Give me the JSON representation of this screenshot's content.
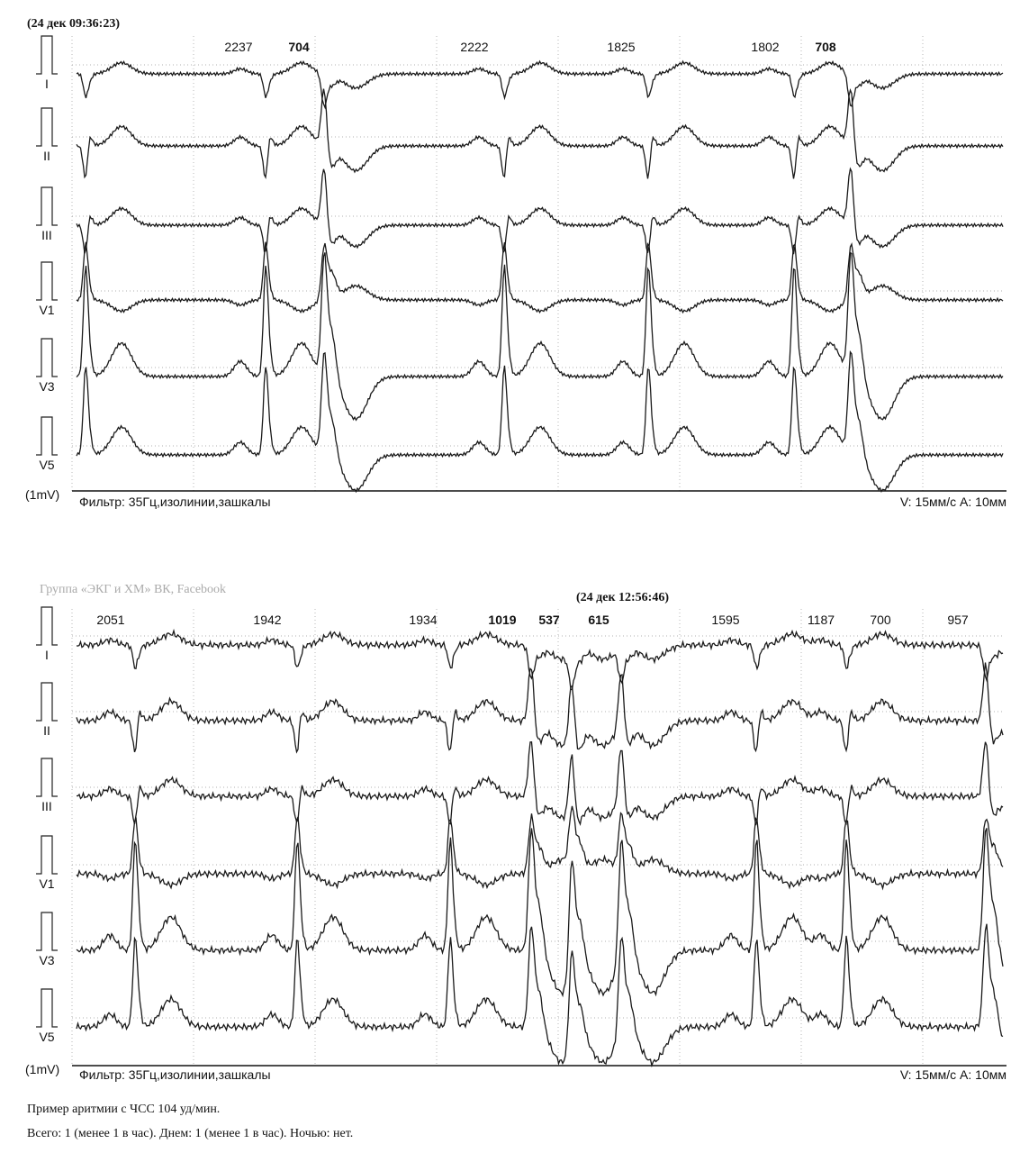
{
  "panels": [
    {
      "timestamp": "(24 дек 09:36:23)",
      "intervals": [
        {
          "text": "2237",
          "bold": false
        },
        {
          "text": "704",
          "bold": true
        },
        {
          "text": "2222",
          "bold": false
        },
        {
          "text": "1825",
          "bold": false
        },
        {
          "text": "1802",
          "bold": false
        },
        {
          "text": "708",
          "bold": true
        }
      ],
      "leads": [
        "I",
        "II",
        "III",
        "V1",
        "V3",
        "V5"
      ],
      "calibration": "(1mV)",
      "filter": "Фильтр: 35Гц,изолинии,зашкалы",
      "speed": "V: 15мм/с  A: 10мм"
    },
    {
      "timestamp": "(24 дек 12:56:46)",
      "intervals": [
        {
          "text": "2051",
          "bold": false
        },
        {
          "text": "1942",
          "bold": false
        },
        {
          "text": "1934",
          "bold": false
        },
        {
          "text": "1019",
          "bold": true
        },
        {
          "text": "537",
          "bold": true
        },
        {
          "text": "615",
          "bold": true
        },
        {
          "text": "1595",
          "bold": false
        },
        {
          "text": "1187",
          "bold": false
        },
        {
          "text": "700",
          "bold": false
        },
        {
          "text": "957",
          "bold": false
        }
      ],
      "leads": [
        "I",
        "II",
        "III",
        "V1",
        "V3",
        "V5"
      ],
      "calibration": "(1mV)",
      "filter": "Фильтр: 35Гц,изолинии,зашкалы",
      "speed": "V: 15мм/с  A: 10мм"
    }
  ],
  "watermark": "Группа «ЭКГ и ХМ» ВК, Facebook",
  "caption": [
    "Пример аритмии  с ЧСС 104 уд/мин.",
    "Всего: 1 (менее 1 в час). Днем: 1 (менее 1 в час). Ночью: нет."
  ]
}
